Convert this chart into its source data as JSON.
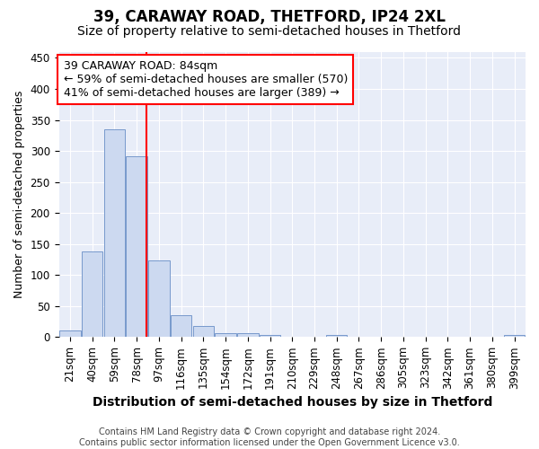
{
  "title": "39, CARAWAY ROAD, THETFORD, IP24 2XL",
  "subtitle": "Size of property relative to semi-detached houses in Thetford",
  "xlabel": "Distribution of semi-detached houses by size in Thetford",
  "ylabel": "Number of semi-detached properties",
  "categories": [
    "21sqm",
    "40sqm",
    "59sqm",
    "78sqm",
    "97sqm",
    "116sqm",
    "135sqm",
    "154sqm",
    "172sqm",
    "191sqm",
    "210sqm",
    "229sqm",
    "248sqm",
    "267sqm",
    "286sqm",
    "305sqm",
    "323sqm",
    "342sqm",
    "361sqm",
    "380sqm",
    "399sqm"
  ],
  "values": [
    10,
    138,
    335,
    292,
    124,
    35,
    18,
    6,
    6,
    4,
    0,
    0,
    4,
    0,
    0,
    0,
    0,
    0,
    0,
    0,
    4
  ],
  "bar_color": "#ccd9f0",
  "bar_edge_color": "#7799cc",
  "red_line_bin_index": 3,
  "annotation_text": "39 CARAWAY ROAD: 84sqm\n← 59% of semi-detached houses are smaller (570)\n41% of semi-detached houses are larger (389) →",
  "ylim": [
    0,
    460
  ],
  "yticks": [
    0,
    50,
    100,
    150,
    200,
    250,
    300,
    350,
    400,
    450
  ],
  "background_color": "#e8edf8",
  "grid_color": "#ffffff",
  "footer_text": "Contains HM Land Registry data © Crown copyright and database right 2024.\nContains public sector information licensed under the Open Government Licence v3.0.",
  "title_fontsize": 12,
  "subtitle_fontsize": 10,
  "xlabel_fontsize": 10,
  "ylabel_fontsize": 9,
  "tick_fontsize": 8.5,
  "annotation_fontsize": 9,
  "footer_fontsize": 7
}
